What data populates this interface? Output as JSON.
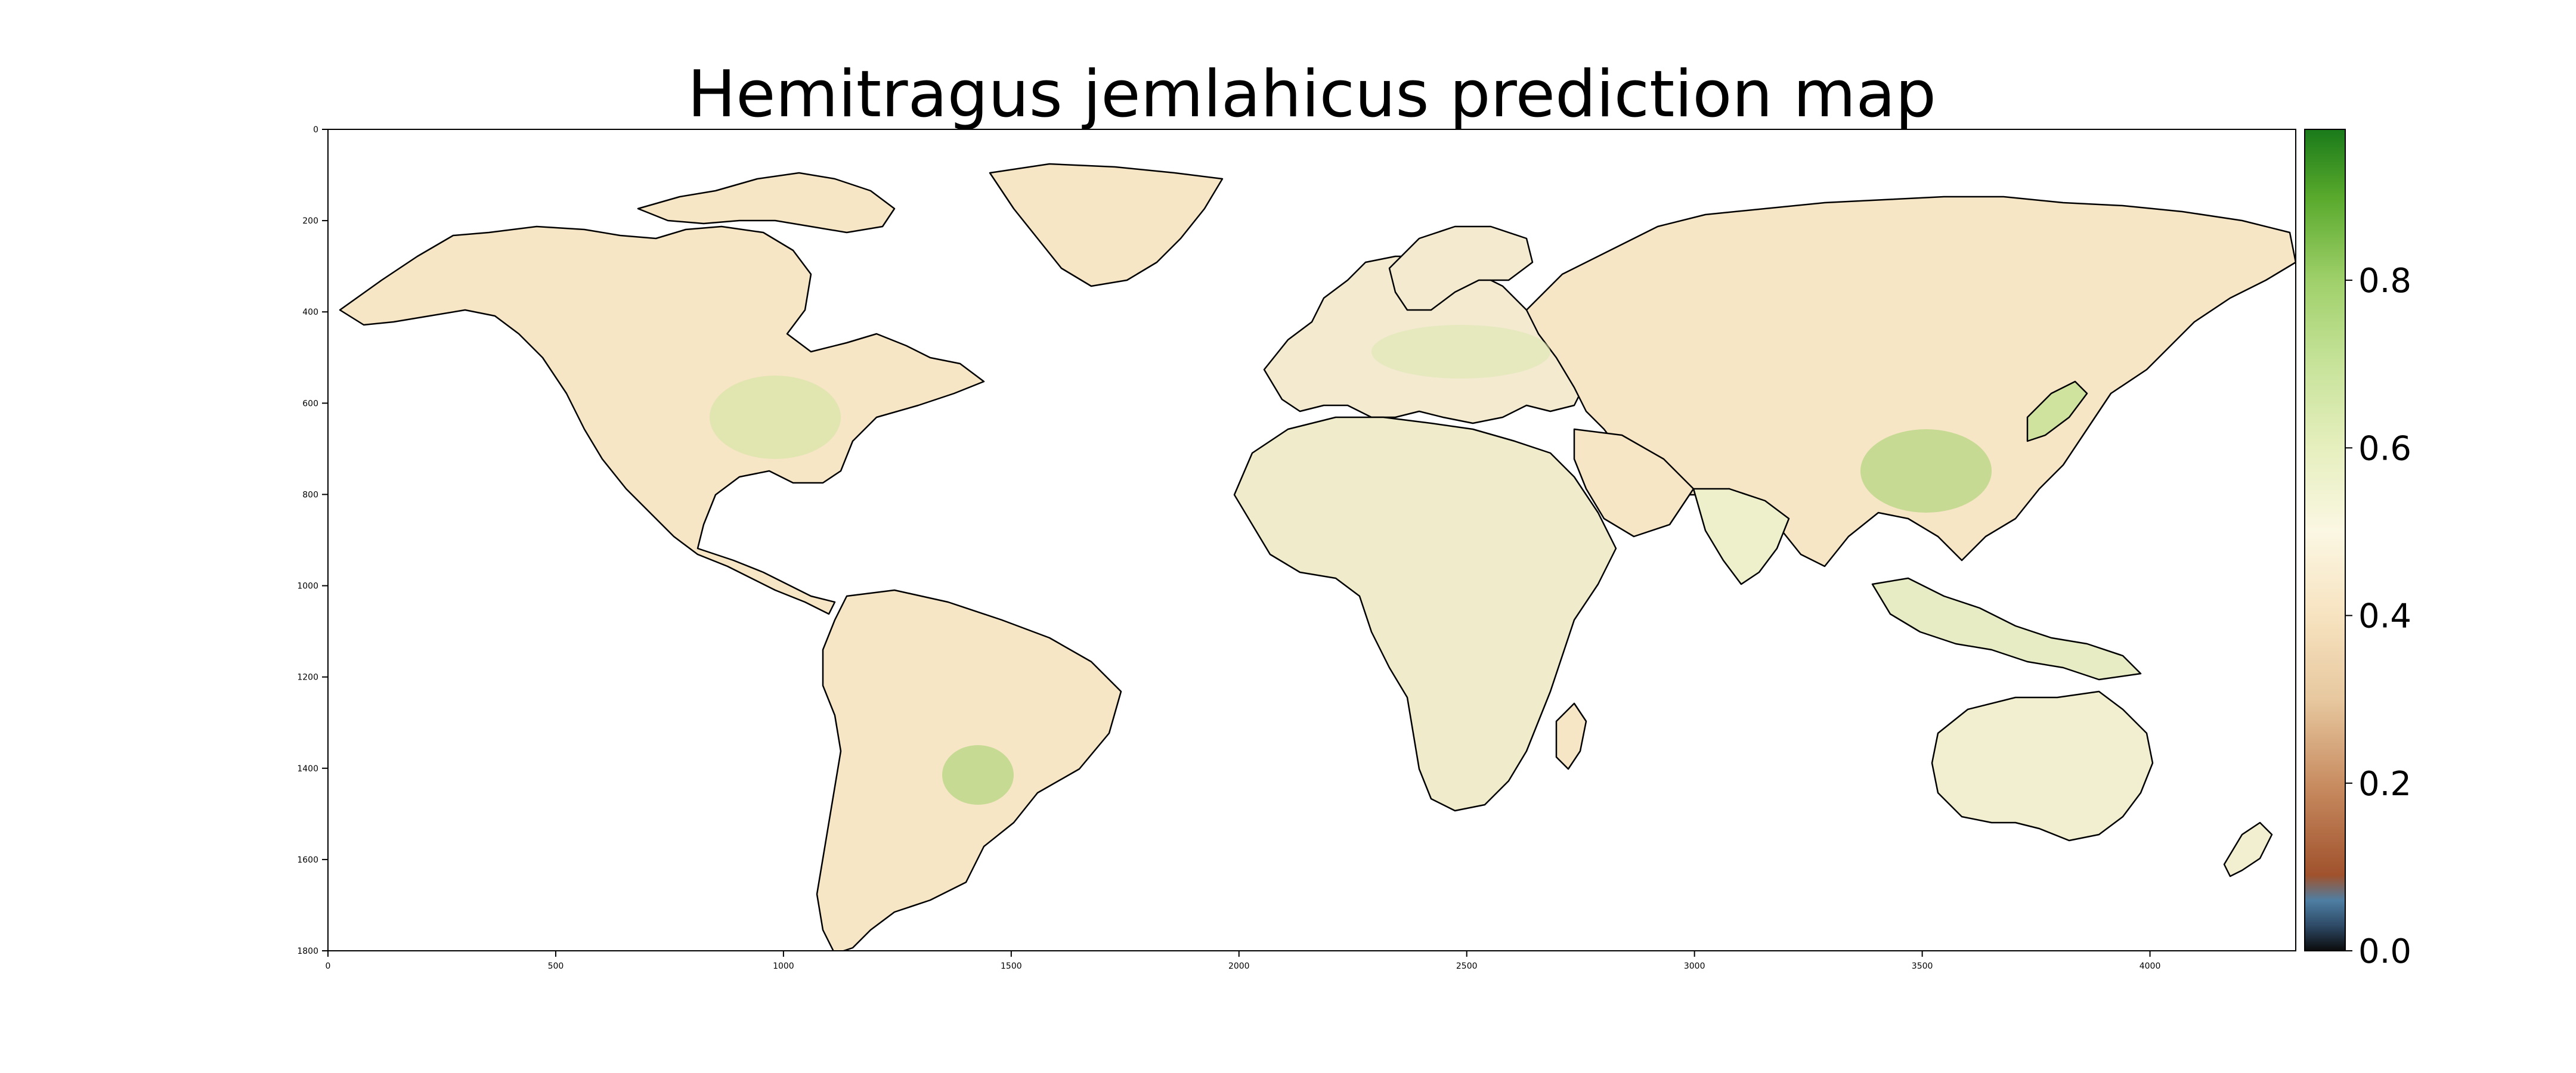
{
  "figure": {
    "title": "Hemitragus jemlahicus prediction map"
  },
  "chart_data": {
    "type": "heatmap",
    "title": "Hemitragus jemlahicus prediction map",
    "xlabel": "",
    "ylabel": "",
    "x_ticks": [
      0,
      500,
      1000,
      1500,
      2000,
      2500,
      3000,
      3500,
      4000
    ],
    "y_ticks": [
      0,
      200,
      400,
      600,
      800,
      1000,
      1200,
      1400,
      1600,
      1800
    ],
    "xlim": [
      0,
      4320
    ],
    "ylim": [
      1800,
      0
    ],
    "y_axis_inverted": true,
    "grid": false,
    "colorbar": {
      "ticks": [
        0.0,
        0.2,
        0.4,
        0.6,
        0.8
      ],
      "tick_labels": [
        "0.0",
        "0.2",
        "0.4",
        "0.6",
        "0.8"
      ],
      "range": [
        0.0,
        0.98
      ],
      "colormap_stops": [
        {
          "value": 0.0,
          "color": "#0b0b0b"
        },
        {
          "value": 0.03,
          "color": "#2e4a66"
        },
        {
          "value": 0.06,
          "color": "#4e7ea3"
        },
        {
          "value": 0.09,
          "color": "#a0522d"
        },
        {
          "value": 0.2,
          "color": "#c98d62"
        },
        {
          "value": 0.3,
          "color": "#e7c89f"
        },
        {
          "value": 0.4,
          "color": "#f7e3c0"
        },
        {
          "value": 0.5,
          "color": "#fbf7e3"
        },
        {
          "value": 0.6,
          "color": "#e6efbe"
        },
        {
          "value": 0.7,
          "color": "#c7e39a"
        },
        {
          "value": 0.8,
          "color": "#9fd06a"
        },
        {
          "value": 0.9,
          "color": "#58a92c"
        },
        {
          "value": 0.98,
          "color": "#1a7a1a"
        }
      ]
    },
    "data_summary": {
      "background_value": 0.42,
      "regions": [
        {
          "name": "North America (east)",
          "approx_value": 0.55
        },
        {
          "name": "Europe",
          "approx_value": 0.55
        },
        {
          "name": "Eastern China / Japan",
          "approx_value": 0.65
        },
        {
          "name": "Southeast South America",
          "approx_value": 0.62
        },
        {
          "name": "Sahara / North Africa",
          "approx_value": 0.5
        },
        {
          "name": "Australia (southeast)",
          "approx_value": 0.5
        }
      ]
    }
  }
}
